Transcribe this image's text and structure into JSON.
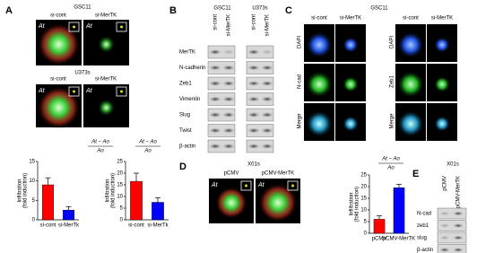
{
  "panels": {
    "A": {
      "label": "A",
      "top_group": "GSC11",
      "bottom_group": "U373s",
      "columns": [
        "si-cont",
        "si-MerTK"
      ],
      "image_label": "At"
    },
    "B": {
      "label": "B",
      "groups": [
        "GSC11",
        "U373s"
      ],
      "lanes": [
        "si-cont",
        "si-MerTK",
        "si-cont",
        "si-MerTK"
      ],
      "rows": [
        "MerTK",
        "N-cadherin",
        "Zeb1",
        "Vimentin",
        "Slug",
        "Twist",
        "β-actin"
      ]
    },
    "C": {
      "label": "C",
      "group": "GSC11",
      "columns": [
        "si-cont",
        "si-MerTK",
        "si-cont",
        "si-MerTK"
      ],
      "left_rows": [
        "DAPI",
        "N-cad",
        "Merge"
      ],
      "right_rows": [
        "DAPI",
        "Zeb1",
        "Merge"
      ]
    },
    "D": {
      "label": "D",
      "group": "X01s",
      "columns": [
        "pCMV",
        "pCMV-MerTK"
      ],
      "image_label": "At"
    },
    "E": {
      "label": "E",
      "group": "X01s",
      "lanes": [
        "pCMV",
        "pCMV-MerTK"
      ],
      "rows": [
        "N-cad",
        "zeb1",
        "slug",
        "β-actin"
      ]
    }
  },
  "chart_data": [
    {
      "type": "bar",
      "formula": {
        "numerator": "At − Ao",
        "denominator": "Ao"
      },
      "ylabel": [
        "Infiltration",
        "(fold induction)"
      ],
      "categories": [
        "si-cont",
        "si-MerTk"
      ],
      "values": [
        9,
        2.5
      ],
      "errors": [
        1.8,
        0.9
      ],
      "colors": [
        "#ff0000",
        "#0000ff"
      ],
      "ylim": [
        0,
        15
      ],
      "yticks": [
        0,
        5,
        10,
        15
      ]
    },
    {
      "type": "bar",
      "formula": {
        "numerator": "At − Ao",
        "denominator": "Ao"
      },
      "ylabel": [
        "Infiltration",
        "(fold induction)"
      ],
      "categories": [
        "si-cont",
        "si-MerTk"
      ],
      "values": [
        16.5,
        7.5
      ],
      "errors": [
        3.5,
        2
      ],
      "colors": [
        "#ff0000",
        "#0000ff"
      ],
      "ylim": [
        0,
        25
      ],
      "yticks": [
        0,
        5,
        10,
        15,
        20,
        25
      ]
    },
    {
      "type": "bar",
      "formula": {
        "numerator": "At − Ao",
        "denominator": "Ao"
      },
      "ylabel": [
        "Infiltration",
        "(fold induction)"
      ],
      "categories": [
        "pCMV",
        "pCMV-MerTK"
      ],
      "values": [
        6,
        19.5
      ],
      "errors": [
        1.5,
        1.5
      ],
      "colors": [
        "#ff0000",
        "#0000ff"
      ],
      "ylim": [
        0,
        25
      ],
      "yticks": [
        0,
        5,
        10,
        15,
        20,
        25
      ]
    }
  ]
}
